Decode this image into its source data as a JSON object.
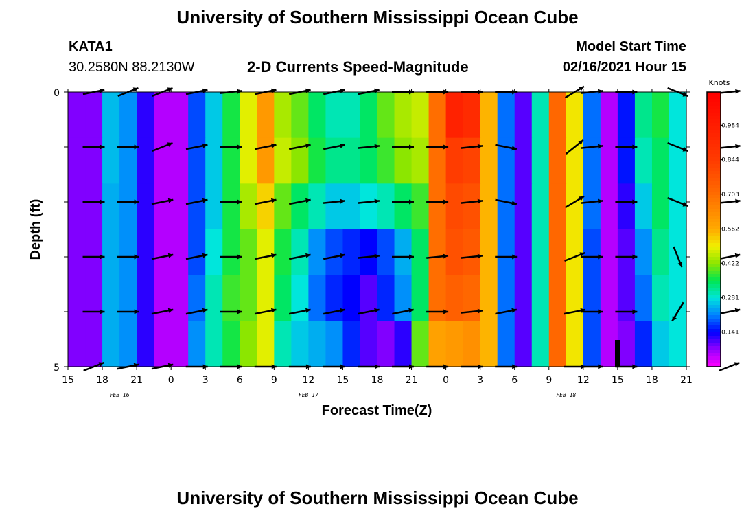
{
  "header": {
    "title": "University of Southern Mississippi Ocean Cube",
    "station": "KATA1",
    "coords": "30.2580N 88.2130W",
    "plot_title": "2-D Currents Speed-Magnitude",
    "model_label": "Model Start Time",
    "model_time": "02/16/2021 Hour 15"
  },
  "footer": {
    "title": "University of Southern Mississippi Ocean Cube"
  },
  "chart_data": {
    "type": "heatmap",
    "title": "2-D Currents Speed-Magnitude",
    "xlabel": "Forecast Time(Z)",
    "ylabel": "Depth (ft)",
    "x_ticks": [
      "15",
      "18",
      "21",
      "0",
      "3",
      "6",
      "9",
      "12",
      "15",
      "18",
      "21",
      "0",
      "3",
      "6",
      "9",
      "12",
      "15",
      "18",
      "21"
    ],
    "y_ticks": [
      "0",
      "5"
    ],
    "ylim": [
      0,
      5
    ],
    "date_labels": [
      "FEB 16",
      "FEB 17",
      "FEB 18"
    ],
    "colorbar": {
      "unit": "Knots",
      "ticks": [
        "0.984",
        "0.844",
        "0.703",
        "0.562",
        "0.422",
        "0.281",
        "0.141"
      ],
      "range": [
        0,
        1.12
      ]
    },
    "speed_knots": [
      [
        0.08,
        0.08,
        0.25,
        0.22,
        0.12,
        0.05,
        0.05,
        0.18,
        0.26,
        0.36,
        0.48,
        0.6,
        0.44,
        0.4,
        0.34,
        0.3,
        0.3,
        0.34,
        0.4,
        0.44,
        0.46,
        0.7,
        0.96,
        0.92,
        0.55,
        0.2,
        0.1,
        0.3,
        0.72,
        0.5,
        0.2,
        0.05,
        0.15,
        0.32,
        0.36,
        0.28
      ],
      [
        0.08,
        0.08,
        0.25,
        0.22,
        0.12,
        0.05,
        0.05,
        0.18,
        0.26,
        0.36,
        0.48,
        0.6,
        0.46,
        0.42,
        0.36,
        0.32,
        0.32,
        0.34,
        0.38,
        0.42,
        0.44,
        0.7,
        0.84,
        0.82,
        0.55,
        0.2,
        0.1,
        0.3,
        0.72,
        0.5,
        0.2,
        0.05,
        0.15,
        0.3,
        0.34,
        0.28
      ],
      [
        0.08,
        0.08,
        0.24,
        0.22,
        0.12,
        0.05,
        0.05,
        0.18,
        0.26,
        0.36,
        0.44,
        0.52,
        0.4,
        0.34,
        0.3,
        0.26,
        0.26,
        0.28,
        0.3,
        0.34,
        0.38,
        0.7,
        0.8,
        0.78,
        0.55,
        0.2,
        0.1,
        0.3,
        0.72,
        0.5,
        0.2,
        0.05,
        0.12,
        0.26,
        0.34,
        0.28
      ],
      [
        0.08,
        0.08,
        0.24,
        0.22,
        0.12,
        0.05,
        0.05,
        0.18,
        0.28,
        0.36,
        0.4,
        0.48,
        0.36,
        0.3,
        0.22,
        0.18,
        0.16,
        0.14,
        0.18,
        0.24,
        0.34,
        0.7,
        0.78,
        0.76,
        0.55,
        0.2,
        0.1,
        0.3,
        0.72,
        0.5,
        0.18,
        0.05,
        0.1,
        0.22,
        0.32,
        0.28
      ],
      [
        0.08,
        0.08,
        0.24,
        0.22,
        0.12,
        0.05,
        0.05,
        0.2,
        0.3,
        0.38,
        0.4,
        0.48,
        0.34,
        0.28,
        0.2,
        0.16,
        0.14,
        0.1,
        0.16,
        0.22,
        0.34,
        0.7,
        0.74,
        0.72,
        0.55,
        0.2,
        0.1,
        0.3,
        0.72,
        0.5,
        0.18,
        0.05,
        0.1,
        0.2,
        0.3,
        0.28
      ],
      [
        0.08,
        0.08,
        0.24,
        0.22,
        0.12,
        0.05,
        0.05,
        0.22,
        0.3,
        0.36,
        0.42,
        0.48,
        0.3,
        0.26,
        0.24,
        0.22,
        0.16,
        0.1,
        0.08,
        0.12,
        0.4,
        0.58,
        0.6,
        0.62,
        0.55,
        0.2,
        0.1,
        0.3,
        0.72,
        0.5,
        0.18,
        0.05,
        0.08,
        0.16,
        0.26,
        0.28
      ]
    ],
    "vectors": [
      {
        "t": 1.5,
        "d": [
          [
            10,
            -2
          ],
          [
            10,
            0
          ],
          [
            10,
            0
          ],
          [
            10,
            0
          ],
          [
            10,
            0
          ],
          [
            10,
            -4
          ]
        ]
      },
      {
        "t": 3.5,
        "d": [
          [
            10,
            -4
          ],
          [
            10,
            0
          ],
          [
            10,
            0
          ],
          [
            10,
            0
          ],
          [
            10,
            0
          ],
          [
            10,
            -2
          ]
        ]
      },
      {
        "t": 5.5,
        "d": [
          [
            10,
            -4
          ],
          [
            10,
            -4
          ],
          [
            10,
            -2
          ],
          [
            10,
            -2
          ],
          [
            10,
            -2
          ],
          [
            10,
            -2
          ]
        ]
      },
      {
        "t": 7.5,
        "d": [
          [
            10,
            -2
          ],
          [
            10,
            -2
          ],
          [
            10,
            -2
          ],
          [
            10,
            -2
          ],
          [
            10,
            -2
          ],
          [
            10,
            0
          ]
        ]
      },
      {
        "t": 9.5,
        "d": [
          [
            10,
            -1
          ],
          [
            10,
            0
          ],
          [
            10,
            0
          ],
          [
            10,
            0
          ],
          [
            10,
            0
          ],
          [
            10,
            0
          ]
        ]
      },
      {
        "t": 11.5,
        "d": [
          [
            10,
            -2
          ],
          [
            10,
            -2
          ],
          [
            10,
            -2
          ],
          [
            10,
            -2
          ],
          [
            10,
            -2
          ],
          [
            10,
            0
          ]
        ]
      },
      {
        "t": 13.5,
        "d": [
          [
            10,
            -2
          ],
          [
            10,
            -2
          ],
          [
            10,
            -2
          ],
          [
            10,
            -2
          ],
          [
            10,
            -2
          ],
          [
            10,
            0
          ]
        ]
      },
      {
        "t": 15.5,
        "d": [
          [
            10,
            -2
          ],
          [
            10,
            -2
          ],
          [
            10,
            -1
          ],
          [
            10,
            -2
          ],
          [
            10,
            -2
          ],
          [
            10,
            0
          ]
        ]
      },
      {
        "t": 17.5,
        "d": [
          [
            10,
            -2
          ],
          [
            10,
            -1
          ],
          [
            10,
            -1
          ],
          [
            10,
            -1
          ],
          [
            10,
            -2
          ],
          [
            10,
            0
          ]
        ]
      },
      {
        "t": 19.5,
        "d": [
          [
            10,
            0
          ],
          [
            10,
            0
          ],
          [
            10,
            0
          ],
          [
            10,
            0
          ],
          [
            10,
            -2
          ],
          [
            10,
            0
          ]
        ]
      },
      {
        "t": 21.5,
        "d": [
          [
            10,
            0
          ],
          [
            10,
            0
          ],
          [
            10,
            0
          ],
          [
            10,
            -1
          ],
          [
            10,
            0
          ],
          [
            10,
            0
          ]
        ]
      },
      {
        "t": 23.5,
        "d": [
          [
            10,
            0
          ],
          [
            10,
            -1
          ],
          [
            10,
            -1
          ],
          [
            10,
            -1
          ],
          [
            10,
            -1
          ],
          [
            10,
            0
          ]
        ]
      },
      {
        "t": 25.5,
        "d": [
          [
            10,
            0
          ],
          [
            10,
            2
          ],
          [
            10,
            2
          ],
          [
            10,
            0
          ],
          [
            10,
            -2
          ],
          [
            10,
            0
          ]
        ]
      },
      {
        "t": 29.5,
        "d": [
          [
            10,
            -6
          ],
          [
            10,
            -8
          ],
          [
            10,
            -6
          ],
          [
            10,
            -4
          ],
          [
            10,
            -2
          ],
          [
            10,
            0
          ]
        ]
      },
      {
        "t": 30.5,
        "d": [
          [
            10,
            -1
          ],
          [
            10,
            -1
          ],
          [
            10,
            -1
          ],
          [
            10,
            0
          ],
          [
            10,
            0
          ],
          [
            10,
            0
          ]
        ]
      },
      {
        "t": 32.5,
        "d": [
          [
            10,
            0
          ],
          [
            10,
            0
          ],
          [
            10,
            0
          ],
          [
            10,
            0
          ],
          [
            10,
            0
          ],
          [
            10,
            0
          ]
        ]
      },
      {
        "t": 35.5,
        "d": [
          [
            10,
            4
          ],
          [
            10,
            4
          ],
          [
            10,
            4
          ],
          [
            4,
            10
          ],
          [
            -6,
            10
          ],
          [
            0,
            0
          ]
        ]
      },
      {
        "t": 38.5,
        "d": [
          [
            10,
            -1
          ],
          [
            10,
            -1
          ],
          [
            10,
            -1
          ],
          [
            10,
            -2
          ],
          [
            10,
            -2
          ],
          [
            10,
            -4
          ]
        ]
      }
    ]
  }
}
